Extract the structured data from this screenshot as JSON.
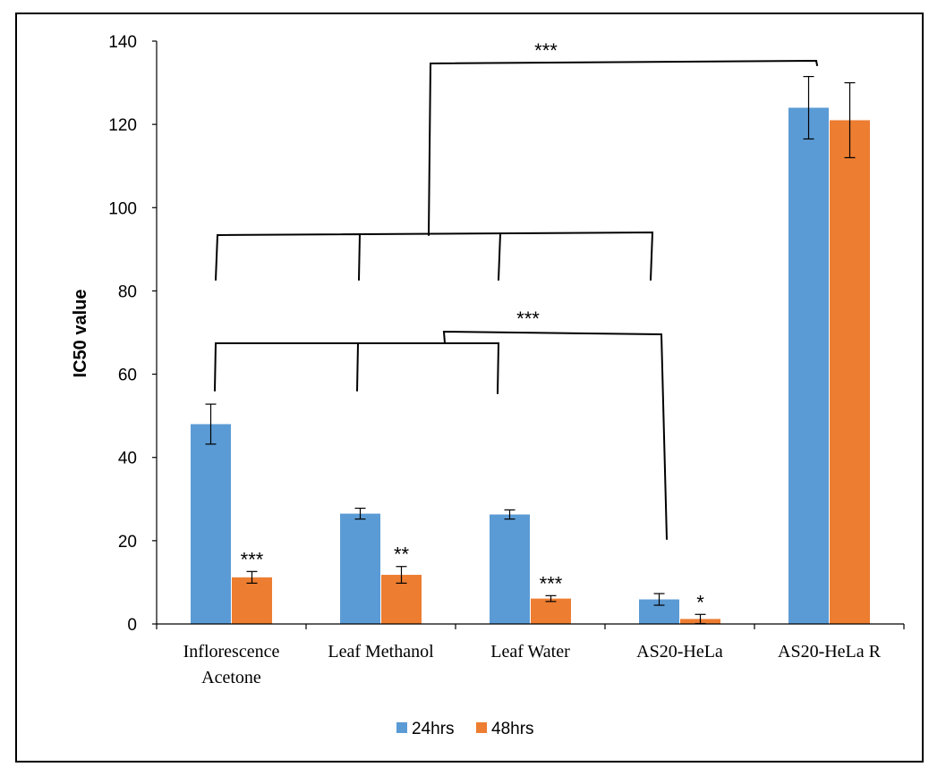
{
  "chart_data": {
    "type": "bar",
    "title": "",
    "xlabel": "",
    "ylabel": "IC50 value",
    "ylim": [
      0,
      140
    ],
    "yticks": [
      0,
      20,
      40,
      60,
      80,
      100,
      120,
      140
    ],
    "grid": false,
    "legend_position": "bottom",
    "categories": [
      [
        "Inflorescence",
        "Acetone"
      ],
      [
        "Leaf Methanol"
      ],
      [
        "Leaf Water"
      ],
      [
        "AS20-HeLa"
      ],
      [
        "AS20-HeLa R"
      ]
    ],
    "series": [
      {
        "name": "24hrs",
        "color": "#5B9BD5",
        "values": [
          48,
          26.5,
          26.3,
          5.9,
          124
        ],
        "errors": [
          4.8,
          1.3,
          1.1,
          1.4,
          7.5
        ],
        "annotations": [
          "",
          "",
          "",
          "",
          ""
        ]
      },
      {
        "name": "48hrs",
        "color": "#ED7D31",
        "values": [
          11.2,
          11.8,
          6.1,
          1.2,
          121
        ],
        "errors": [
          1.4,
          2.0,
          0.7,
          1.1,
          9.0
        ],
        "annotations": [
          "***",
          "**",
          "***",
          "*",
          ""
        ]
      }
    ],
    "significance": [
      {
        "label": "***",
        "from": "first four categories",
        "to": "AS20-HeLa R"
      },
      {
        "label": "***",
        "from": "first three categories",
        "to": "AS20-HeLa"
      }
    ]
  }
}
